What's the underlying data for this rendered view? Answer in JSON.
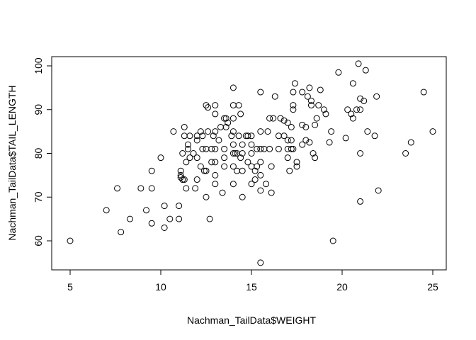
{
  "chart_data": {
    "type": "scatter",
    "title": "",
    "xlabel": "Nachman_TailData$WEIGHT",
    "ylabel": "Nachman_TailData$TAIL_LENGTH",
    "xlim": [
      5,
      25
    ],
    "ylim": [
      55,
      100.5
    ],
    "xticks": [
      5,
      10,
      15,
      20,
      25
    ],
    "yticks": [
      60,
      70,
      80,
      90,
      100
    ],
    "xtick_labels": [
      "5",
      "10",
      "15",
      "20",
      "25"
    ],
    "ytick_labels": [
      "60",
      "70",
      "80",
      "90",
      "100"
    ],
    "grid": false,
    "legend": "none",
    "marker": "open-circle",
    "points": [
      [
        5.0,
        60
      ],
      [
        7.0,
        67
      ],
      [
        7.6,
        72
      ],
      [
        7.8,
        62
      ],
      [
        8.3,
        65
      ],
      [
        8.9,
        72
      ],
      [
        9.2,
        67
      ],
      [
        9.5,
        72
      ],
      [
        9.5,
        76
      ],
      [
        9.5,
        64
      ],
      [
        10.0,
        79
      ],
      [
        10.2,
        68
      ],
      [
        10.2,
        63
      ],
      [
        10.5,
        65
      ],
      [
        10.7,
        85
      ],
      [
        11.0,
        68
      ],
      [
        11.0,
        65
      ],
      [
        11.1,
        76
      ],
      [
        11.1,
        75
      ],
      [
        11.1,
        74.5
      ],
      [
        11.2,
        80
      ],
      [
        11.2,
        74
      ],
      [
        11.3,
        86
      ],
      [
        11.3,
        84
      ],
      [
        11.3,
        74
      ],
      [
        11.4,
        72
      ],
      [
        11.4,
        78
      ],
      [
        11.5,
        82
      ],
      [
        11.5,
        81
      ],
      [
        11.6,
        79
      ],
      [
        11.6,
        84
      ],
      [
        11.8,
        80
      ],
      [
        11.9,
        72
      ],
      [
        12.0,
        84
      ],
      [
        12.0,
        83
      ],
      [
        12.0,
        79
      ],
      [
        12.0,
        74
      ],
      [
        12.2,
        77
      ],
      [
        12.2,
        85
      ],
      [
        12.3,
        81
      ],
      [
        12.3,
        84
      ],
      [
        12.4,
        76
      ],
      [
        12.5,
        76
      ],
      [
        12.5,
        70
      ],
      [
        12.5,
        81
      ],
      [
        12.5,
        91
      ],
      [
        12.6,
        90.5
      ],
      [
        12.6,
        85
      ],
      [
        12.7,
        65
      ],
      [
        12.8,
        78
      ],
      [
        12.8,
        81
      ],
      [
        12.9,
        84
      ],
      [
        13.0,
        73
      ],
      [
        13.0,
        75
      ],
      [
        13.0,
        78
      ],
      [
        13.0,
        81
      ],
      [
        13.0,
        85
      ],
      [
        13.0,
        89
      ],
      [
        13.0,
        91
      ],
      [
        13.2,
        83
      ],
      [
        13.3,
        86
      ],
      [
        13.4,
        71
      ],
      [
        13.5,
        77
      ],
      [
        13.5,
        79
      ],
      [
        13.5,
        81
      ],
      [
        13.5,
        88
      ],
      [
        13.6,
        88
      ],
      [
        13.6,
        86
      ],
      [
        13.7,
        87
      ],
      [
        13.9,
        84
      ],
      [
        14.0,
        95
      ],
      [
        14.0,
        91
      ],
      [
        14.0,
        88
      ],
      [
        14.0,
        85
      ],
      [
        14.0,
        82
      ],
      [
        14.0,
        80
      ],
      [
        14.0,
        77
      ],
      [
        14.0,
        73
      ],
      [
        14.1,
        80
      ],
      [
        14.2,
        80
      ],
      [
        14.2,
        76
      ],
      [
        14.3,
        91
      ],
      [
        14.3,
        84
      ],
      [
        14.4,
        89
      ],
      [
        14.4,
        79
      ],
      [
        14.5,
        82
      ],
      [
        14.5,
        80
      ],
      [
        14.5,
        76
      ],
      [
        14.5,
        70
      ],
      [
        14.7,
        84
      ],
      [
        14.8,
        78
      ],
      [
        14.8,
        84
      ],
      [
        15.0,
        84
      ],
      [
        15.0,
        82
      ],
      [
        15.0,
        80
      ],
      [
        15.0,
        77
      ],
      [
        15.0,
        73
      ],
      [
        15.2,
        76
      ],
      [
        15.2,
        74
      ],
      [
        15.3,
        77
      ],
      [
        15.3,
        81
      ],
      [
        15.5,
        94
      ],
      [
        15.5,
        85
      ],
      [
        15.5,
        81
      ],
      [
        15.5,
        78
      ],
      [
        15.5,
        75
      ],
      [
        15.5,
        71.5
      ],
      [
        15.5,
        55
      ],
      [
        15.7,
        81
      ],
      [
        15.8,
        73
      ],
      [
        15.9,
        85
      ],
      [
        16.0,
        88
      ],
      [
        16.0,
        81
      ],
      [
        16.1,
        77
      ],
      [
        16.1,
        71
      ],
      [
        16.2,
        88
      ],
      [
        16.3,
        93
      ],
      [
        16.5,
        81
      ],
      [
        16.5,
        84
      ],
      [
        16.6,
        88
      ],
      [
        16.8,
        87.5
      ],
      [
        16.8,
        84
      ],
      [
        17.0,
        79
      ],
      [
        17.0,
        83
      ],
      [
        17.0,
        87
      ],
      [
        17.0,
        81
      ],
      [
        17.1,
        76
      ],
      [
        17.2,
        81
      ],
      [
        17.2,
        86
      ],
      [
        17.2,
        83
      ],
      [
        17.3,
        81
      ],
      [
        17.3,
        94
      ],
      [
        17.3,
        91
      ],
      [
        17.3,
        90
      ],
      [
        17.4,
        96
      ],
      [
        17.5,
        78
      ],
      [
        17.5,
        77
      ],
      [
        17.8,
        94
      ],
      [
        17.8,
        82
      ],
      [
        17.8,
        86.5
      ],
      [
        18.0,
        86
      ],
      [
        18.0,
        83
      ],
      [
        18.1,
        93
      ],
      [
        18.2,
        95
      ],
      [
        18.2,
        82.5
      ],
      [
        18.3,
        91
      ],
      [
        18.3,
        92
      ],
      [
        18.4,
        80
      ],
      [
        18.5,
        79
      ],
      [
        18.5,
        86.5
      ],
      [
        18.6,
        88
      ],
      [
        18.7,
        91
      ],
      [
        18.8,
        94.5
      ],
      [
        19.0,
        90
      ],
      [
        19.1,
        89
      ],
      [
        19.3,
        82.5
      ],
      [
        19.4,
        85
      ],
      [
        19.5,
        60
      ],
      [
        19.8,
        98.5
      ],
      [
        20.2,
        83.5
      ],
      [
        20.3,
        90
      ],
      [
        20.5,
        89
      ],
      [
        20.6,
        88
      ],
      [
        20.6,
        96
      ],
      [
        20.8,
        90
      ],
      [
        20.9,
        100.5
      ],
      [
        21.0,
        92.5
      ],
      [
        21.0,
        90
      ],
      [
        21.0,
        80
      ],
      [
        21.0,
        69
      ],
      [
        21.2,
        92
      ],
      [
        21.3,
        99
      ],
      [
        21.4,
        85
      ],
      [
        21.8,
        84
      ],
      [
        21.9,
        93
      ],
      [
        22.0,
        71.5
      ],
      [
        23.5,
        80
      ],
      [
        23.8,
        82.5
      ],
      [
        24.5,
        94
      ],
      [
        25.0,
        85
      ]
    ]
  }
}
